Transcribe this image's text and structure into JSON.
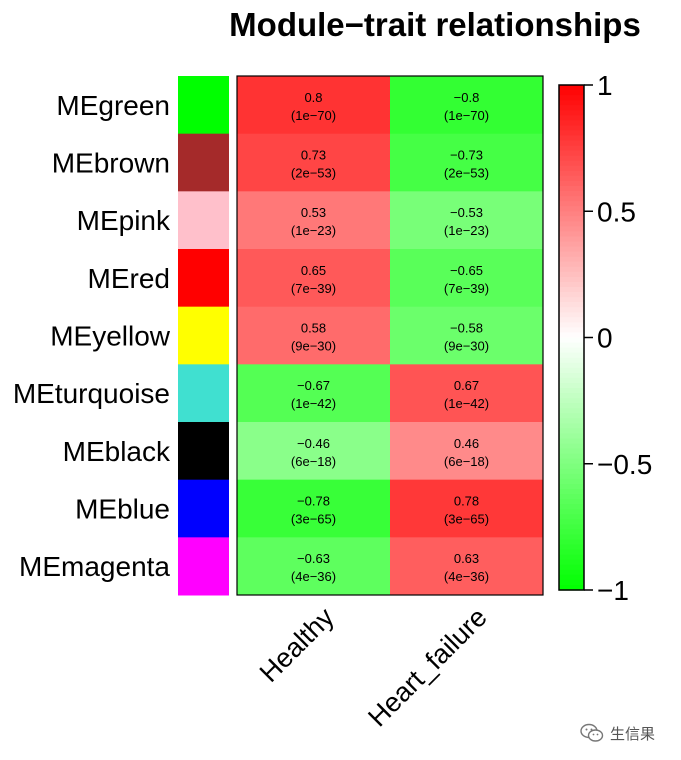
{
  "chart_data": {
    "type": "heatmap",
    "title": "Module−trait relationships",
    "rows": [
      "MEgreen",
      "MEbrown",
      "MEpink",
      "MEred",
      "MEyellow",
      "MEturquoise",
      "MEblack",
      "MEblue",
      "MEmagenta"
    ],
    "row_colors": [
      "#00ff00",
      "#a52a2a",
      "#ffc0cb",
      "#ff0000",
      "#ffff00",
      "#40e0d0",
      "#000000",
      "#0000ff",
      "#ff00ff"
    ],
    "columns": [
      "Healthy",
      "Heart_failure"
    ],
    "values": [
      [
        0.8,
        -0.8
      ],
      [
        0.73,
        -0.73
      ],
      [
        0.53,
        -0.53
      ],
      [
        0.65,
        -0.65
      ],
      [
        0.58,
        -0.58
      ],
      [
        -0.67,
        0.67
      ],
      [
        -0.46,
        0.46
      ],
      [
        -0.78,
        0.78
      ],
      [
        -0.63,
        0.63
      ]
    ],
    "cell_labels": [
      [
        [
          "0.8",
          "(1e−70)"
        ],
        [
          "−0.8",
          "(1e−70)"
        ]
      ],
      [
        [
          "0.73",
          "(2e−53)"
        ],
        [
          "−0.73",
          "(2e−53)"
        ]
      ],
      [
        [
          "0.53",
          "(1e−23)"
        ],
        [
          "−0.53",
          "(1e−23)"
        ]
      ],
      [
        [
          "0.65",
          "(7e−39)"
        ],
        [
          "−0.65",
          "(7e−39)"
        ]
      ],
      [
        [
          "0.58",
          "(9e−30)"
        ],
        [
          "−0.58",
          "(9e−30)"
        ]
      ],
      [
        [
          "−0.67",
          "(1e−42)"
        ],
        [
          "0.67",
          "(1e−42)"
        ]
      ],
      [
        [
          "−0.46",
          "(6e−18)"
        ],
        [
          "0.46",
          "(6e−18)"
        ]
      ],
      [
        [
          "−0.78",
          "(3e−65)"
        ],
        [
          "0.78",
          "(3e−65)"
        ]
      ],
      [
        [
          "−0.63",
          "(4e−36)"
        ],
        [
          "0.63",
          "(4e−36)"
        ]
      ]
    ],
    "color_scale": {
      "min": -1,
      "max": 1,
      "low": "#00ff00",
      "mid": "#ffffff",
      "high": "#ff0000"
    },
    "colorbar_ticks": [
      1,
      0.5,
      0,
      -0.5,
      -1
    ],
    "colorbar_tick_labels": [
      "1",
      "0.5",
      "0",
      "−0.5",
      "−1"
    ]
  },
  "watermark": {
    "text": "生信果",
    "icon": "wechat-icon"
  }
}
